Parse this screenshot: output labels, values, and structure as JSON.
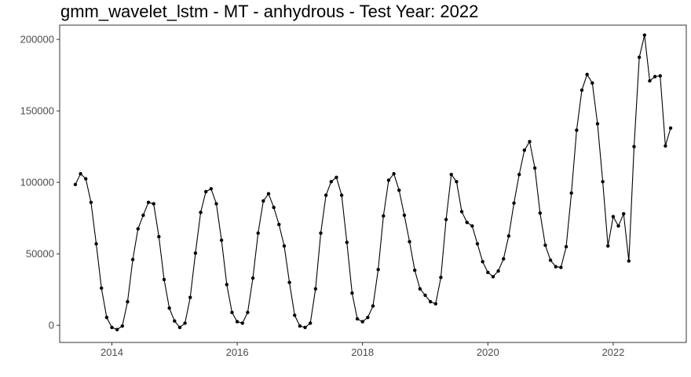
{
  "chart_data": {
    "type": "line",
    "title": "gmm_wavelet_lstm - MT - anhydrous - Test Year: 2022",
    "xlabel": "",
    "ylabel": "",
    "x_ticks": [
      "2014",
      "2016",
      "2018",
      "2020",
      "2022"
    ],
    "y_ticks": [
      "0",
      "50000",
      "100000",
      "150000",
      "200000"
    ],
    "xlim": [
      "2013-03-01",
      "2023-03-01"
    ],
    "ylim": [
      -12000,
      210000
    ],
    "grid": false,
    "line_color": "#000000",
    "series": [
      {
        "x": [
          "2013-06",
          "2013-07",
          "2013-08",
          "2013-09",
          "2013-10",
          "2013-11",
          "2013-12",
          "2014-01",
          "2014-02",
          "2014-03",
          "2014-04",
          "2014-05",
          "2014-06",
          "2014-07",
          "2014-08",
          "2014-09",
          "2014-10",
          "2014-11",
          "2014-12",
          "2015-01",
          "2015-02",
          "2015-03",
          "2015-04",
          "2015-05",
          "2015-06",
          "2015-07",
          "2015-08",
          "2015-09",
          "2015-10",
          "2015-11",
          "2015-12",
          "2016-01",
          "2016-02",
          "2016-03",
          "2016-04",
          "2016-05",
          "2016-06",
          "2016-07",
          "2016-08",
          "2016-09",
          "2016-10",
          "2016-11",
          "2016-12",
          "2017-01",
          "2017-02",
          "2017-03",
          "2017-04",
          "2017-05",
          "2017-06",
          "2017-07",
          "2017-08",
          "2017-09",
          "2017-10",
          "2017-11",
          "2017-12",
          "2018-01",
          "2018-02",
          "2018-03",
          "2018-04",
          "2018-05",
          "2018-06",
          "2018-07",
          "2018-08",
          "2018-09",
          "2018-10",
          "2018-11",
          "2018-12",
          "2019-01",
          "2019-02",
          "2019-03",
          "2019-04",
          "2019-05",
          "2019-06",
          "2019-07",
          "2019-08",
          "2019-09",
          "2019-10",
          "2019-11",
          "2019-12",
          "2020-01",
          "2020-02",
          "2020-03",
          "2020-04",
          "2020-05",
          "2020-06",
          "2020-07",
          "2020-08",
          "2020-09",
          "2020-10",
          "2020-11",
          "2020-12",
          "2021-01",
          "2021-02",
          "2021-03",
          "2021-04",
          "2021-05",
          "2021-06",
          "2021-07",
          "2021-08",
          "2021-09",
          "2021-10",
          "2021-11",
          "2021-12",
          "2022-01",
          "2022-02",
          "2022-03",
          "2022-04",
          "2022-05",
          "2022-06",
          "2022-07",
          "2022-08",
          "2022-09",
          "2022-10",
          "2022-11",
          "2022-12"
        ],
        "y": [
          98500,
          106000,
          102500,
          86000,
          57000,
          26000,
          5500,
          -1500,
          -3000,
          -500,
          16500,
          46000,
          67500,
          77000,
          86000,
          85000,
          62000,
          32000,
          12000,
          3000,
          -1500,
          1500,
          19500,
          50500,
          79000,
          93500,
          95500,
          85000,
          59500,
          28500,
          9000,
          2500,
          1500,
          9000,
          33000,
          64500,
          87000,
          92000,
          82500,
          70500,
          55500,
          30000,
          7000,
          -500,
          -1500,
          1500,
          25500,
          64500,
          91000,
          100500,
          103500,
          91000,
          58000,
          22500,
          4500,
          2500,
          5500,
          13500,
          39000,
          76500,
          101500,
          106000,
          94500,
          77000,
          58500,
          38500,
          25500,
          21000,
          16500,
          15000,
          33500,
          74000,
          105500,
          100500,
          79500,
          72000,
          69500,
          57000,
          44500,
          37000,
          34000,
          38000,
          46500,
          62500,
          85500,
          105500,
          122500,
          128500,
          110000,
          78500,
          56000,
          45500,
          41000,
          40500,
          55000,
          92500,
          136500,
          164500,
          175500,
          169500,
          141000,
          100500,
          55500,
          76000,
          69500,
          78000,
          45000,
          125000,
          187500,
          203000,
          171000,
          174000,
          174500,
          125500,
          138000
        ]
      }
    ]
  }
}
